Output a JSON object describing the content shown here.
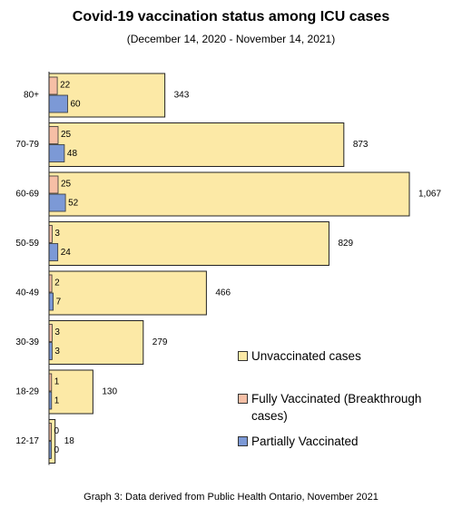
{
  "chart_data": {
    "type": "bar",
    "orientation": "horizontal",
    "title": "Covid-19 vaccination status among ICU cases",
    "subtitle": "(December 14, 2020 - November 14, 2021)",
    "categories": [
      "80+",
      "70-79",
      "60-69",
      "50-59",
      "40-49",
      "30-39",
      "18-29",
      "12-17"
    ],
    "series": [
      {
        "name": "Unvaccinated cases",
        "values": [
          343,
          873,
          1067,
          829,
          466,
          279,
          130,
          18
        ],
        "labels": [
          "343",
          "873",
          "1,067",
          "829",
          "466",
          "279",
          "130",
          "18"
        ],
        "color": "#fce9a6"
      },
      {
        "name": "Fully Vaccinated (Breakthrough cases)",
        "values": [
          22,
          25,
          25,
          3,
          2,
          3,
          1,
          0
        ],
        "labels": [
          "22",
          "25",
          "25",
          "3",
          "2",
          "3",
          "1",
          "0"
        ],
        "color": "#f6bfa6"
      },
      {
        "name": "Partially Vaccinated",
        "values": [
          60,
          48,
          52,
          24,
          7,
          3,
          1,
          0
        ],
        "labels": [
          "60",
          "48",
          "52",
          "24",
          "7",
          "3",
          "1",
          "0"
        ],
        "color": "#7c99d6"
      }
    ],
    "grid": false,
    "legend_position": "bottom-right",
    "caption": "Graph 3: Data derived from Public Health Ontario, November 2021"
  }
}
